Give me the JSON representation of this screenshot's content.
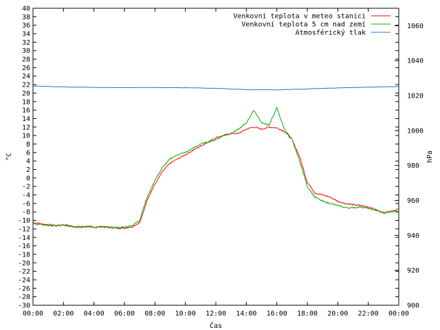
{
  "chart_data": {
    "type": "line",
    "xlabel": "Čas",
    "ylabel": "°C",
    "y2label": "hPa",
    "ylim": [
      -30,
      40
    ],
    "y2lim": [
      900,
      1070
    ],
    "x_ticks": [
      "00:00",
      "02:00",
      "04:00",
      "06:00",
      "08:00",
      "10:00",
      "12:00",
      "14:00",
      "16:00",
      "18:00",
      "20:00",
      "22:00",
      "00:00"
    ],
    "y_ticks": [
      40,
      38,
      36,
      34,
      32,
      30,
      28,
      26,
      24,
      22,
      20,
      18,
      16,
      14,
      12,
      10,
      8,
      6,
      4,
      2,
      0,
      -2,
      -4,
      -6,
      -8,
      -10,
      -12,
      -14,
      -16,
      -18,
      -20,
      -22,
      -24,
      -26,
      -28,
      -30
    ],
    "y2_ticks": [
      1060,
      1040,
      1020,
      1000,
      980,
      960,
      940,
      920,
      900
    ],
    "grid": false,
    "legend_position": "top-right",
    "series": [
      {
        "name": "Venkovní teplota v meteo stanici",
        "axis": "left",
        "color": "#ff0000",
        "x": [
          0,
          0.5,
          1,
          1.5,
          2,
          2.5,
          3,
          3.5,
          4,
          4.5,
          5,
          5.5,
          6,
          6.5,
          7,
          7.25,
          7.5,
          8,
          8.5,
          9,
          9.5,
          10,
          10.5,
          11,
          11.5,
          12,
          12.5,
          13,
          13.5,
          14,
          14.5,
          15,
          15.5,
          16,
          16.5,
          17,
          17.5,
          18,
          18.5,
          19,
          19.5,
          20,
          20.5,
          21,
          21.5,
          22,
          22.5,
          23,
          23.5,
          24
        ],
        "y": [
          -10.5,
          -10.8,
          -11.0,
          -11.2,
          -11.0,
          -11.3,
          -11.5,
          -11.4,
          -11.6,
          -11.5,
          -11.7,
          -11.8,
          -11.8,
          -11.5,
          -10.5,
          -8,
          -5,
          -1.5,
          1.5,
          3.5,
          4.5,
          5.5,
          6.5,
          7.5,
          8.5,
          9.5,
          10,
          10.5,
          10.5,
          11.5,
          12,
          11.5,
          12,
          11.8,
          11,
          9,
          5,
          -1,
          -3.5,
          -4,
          -4.5,
          -5.5,
          -6,
          -6.3,
          -6.5,
          -6.8,
          -7.5,
          -8.2,
          -7.8,
          -7.3
        ]
      },
      {
        "name": "Venkovní teplota 5 cm nad zemí",
        "axis": "left",
        "color": "#00aa00",
        "x": [
          0,
          0.5,
          1,
          1.5,
          2,
          2.5,
          3,
          3.5,
          4,
          4.5,
          5,
          5.5,
          6,
          6.5,
          7,
          7.25,
          7.5,
          8,
          8.5,
          9,
          9.5,
          10,
          10.5,
          11,
          11.5,
          12,
          12.5,
          13,
          13.5,
          14,
          14.5,
          15,
          15.5,
          16,
          16.5,
          17,
          17.5,
          18,
          18.5,
          19,
          19.5,
          20,
          20.5,
          21,
          21.5,
          22,
          22.5,
          23,
          23.5,
          24
        ],
        "y": [
          -10.8,
          -11.0,
          -11.2,
          -11.3,
          -11.2,
          -11.4,
          -11.6,
          -11.5,
          -11.6,
          -11.5,
          -11.6,
          -11.7,
          -11.6,
          -11.2,
          -10,
          -7,
          -4.5,
          -0.5,
          2.5,
          4.5,
          5.5,
          6,
          7,
          8,
          8.5,
          9,
          10,
          10.5,
          11.5,
          13,
          16,
          13,
          12.5,
          16.5,
          11.5,
          9,
          4,
          -2,
          -4.5,
          -5.5,
          -6,
          -6.5,
          -7,
          -7,
          -6.8,
          -7.2,
          -7.6,
          -8.2,
          -8.0,
          -7.8
        ]
      },
      {
        "name": "Atmosférický tlak",
        "axis": "right",
        "color": "#1a75cc",
        "x": [
          0,
          2,
          4,
          6,
          8,
          10,
          12,
          14,
          16,
          18,
          20,
          22,
          24
        ],
        "y": [
          1025.5,
          1025,
          1024.7,
          1024.6,
          1024.6,
          1024.5,
          1024.2,
          1023.4,
          1023.3,
          1023.8,
          1024.4,
          1024.8,
          1025.2
        ]
      }
    ]
  }
}
